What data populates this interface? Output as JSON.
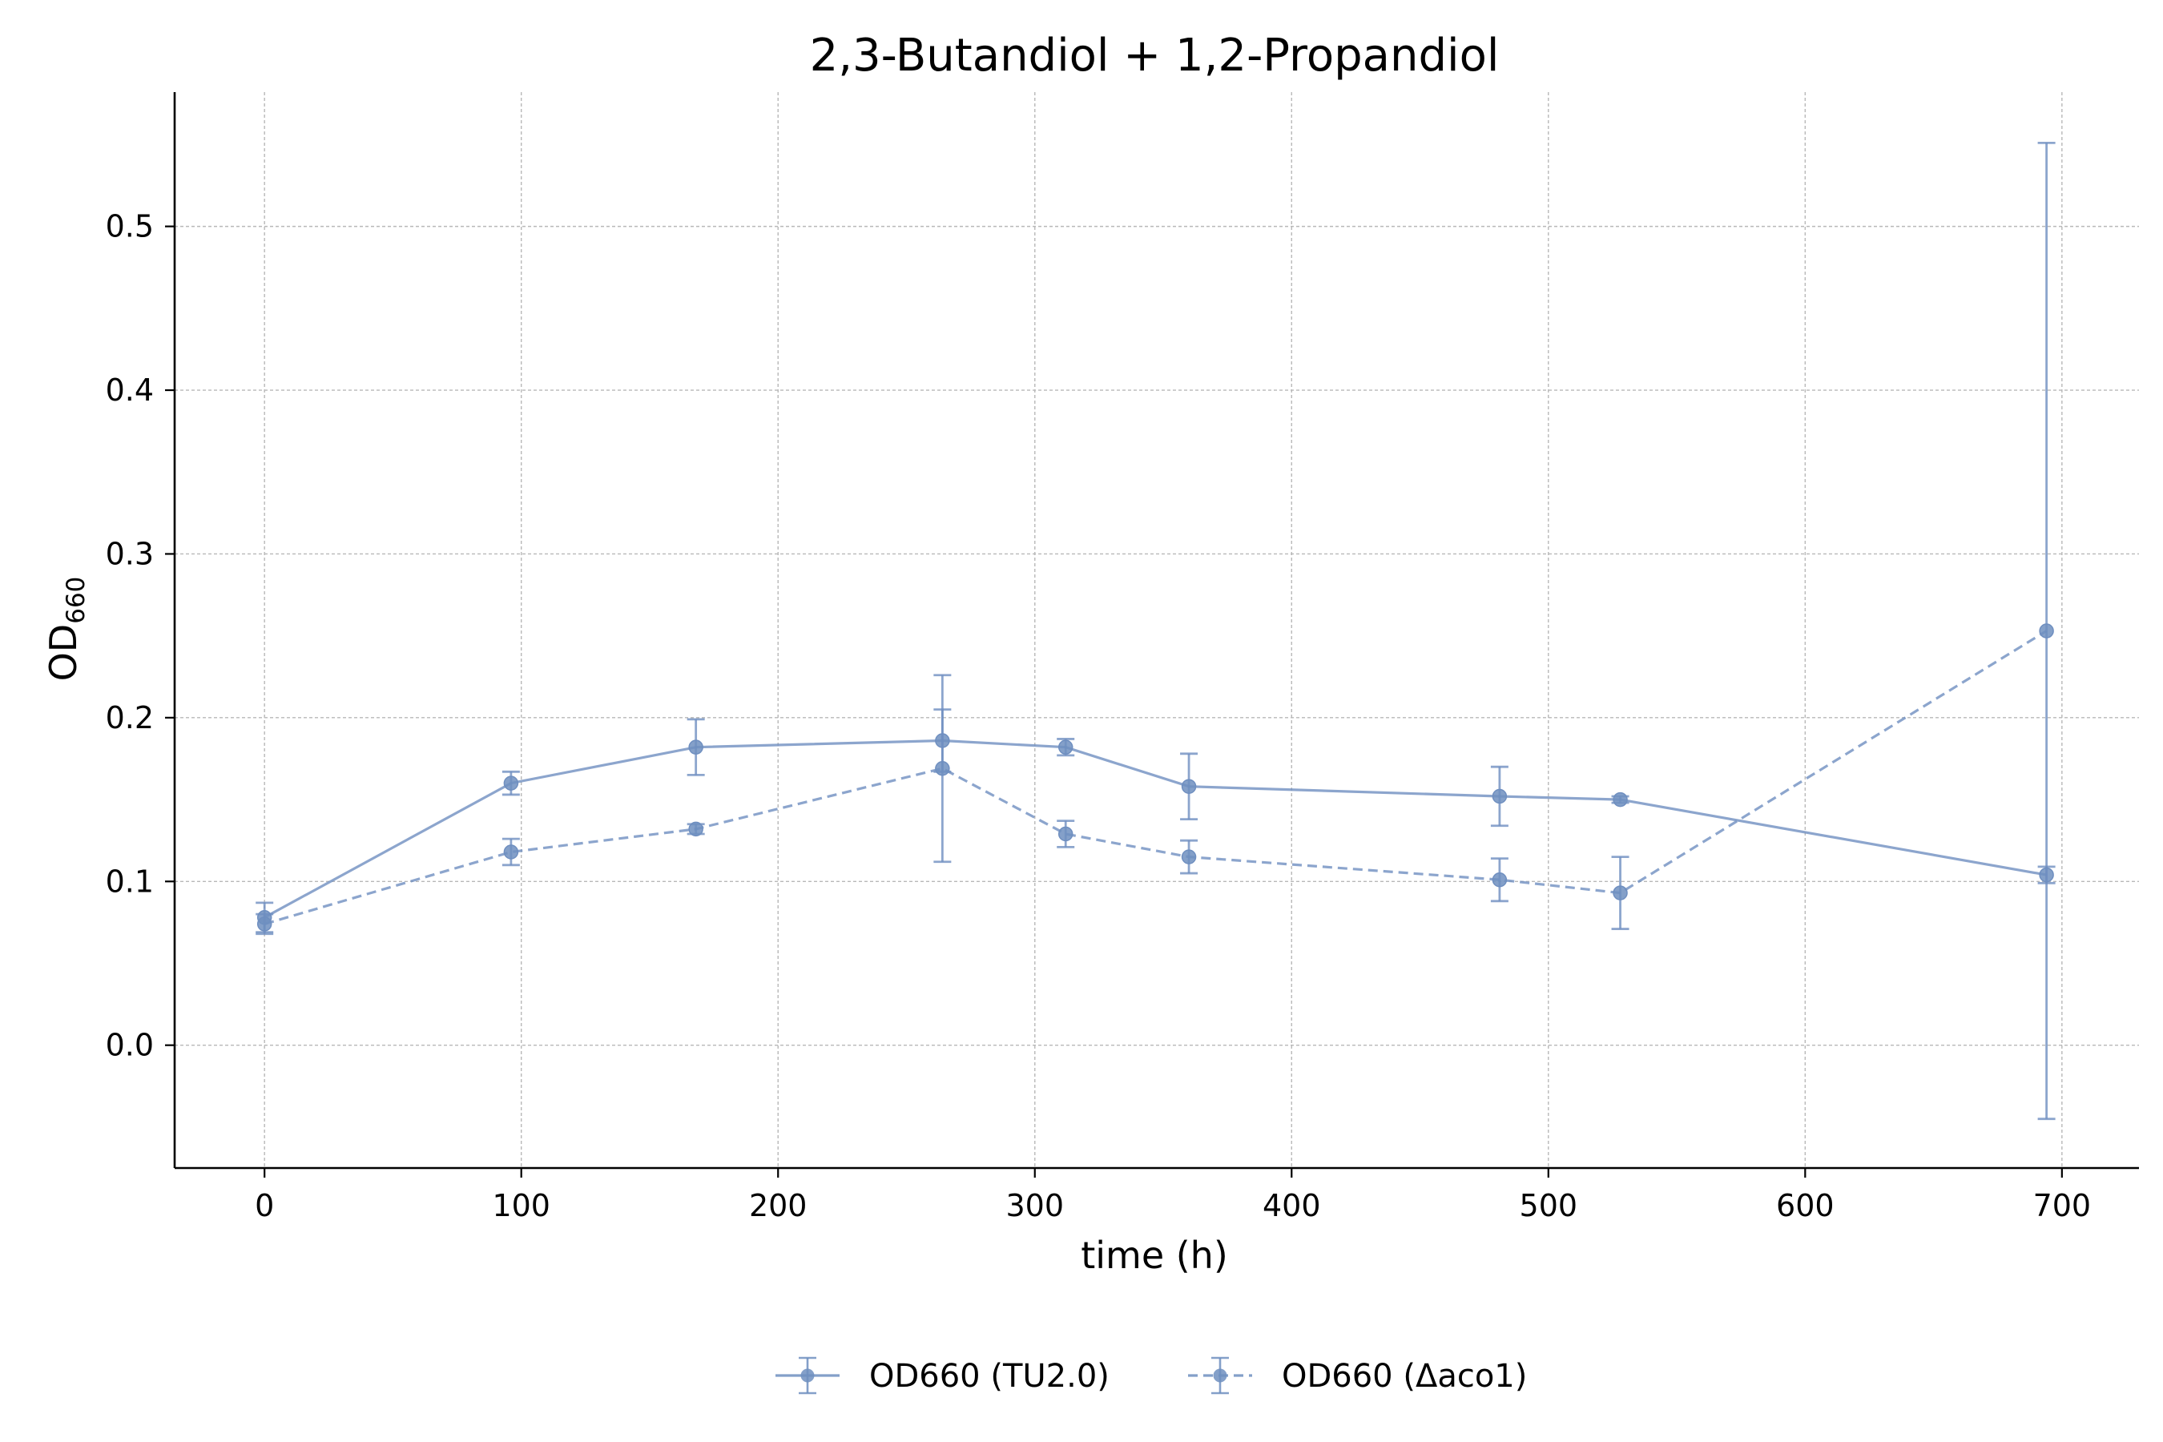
{
  "chart_data": {
    "type": "line",
    "title": "2,3-Butandiol + 1,2-Propandiol",
    "xlabel": "time (h)",
    "ylabel": "OD",
    "ylabel_subscript": "660",
    "xlim": [
      -35,
      730
    ],
    "ylim": [
      -0.075,
      0.582
    ],
    "x_ticks": [
      0,
      100,
      200,
      300,
      400,
      500,
      600,
      700
    ],
    "y_ticks": [
      0.0,
      0.1,
      0.2,
      0.3,
      0.4,
      0.5
    ],
    "x_tick_labels": [
      "0",
      "100",
      "200",
      "300",
      "400",
      "500",
      "600",
      "700"
    ],
    "y_tick_labels": [
      "0.0",
      "0.1",
      "0.2",
      "0.3",
      "0.4",
      "0.5"
    ],
    "grid": true,
    "legend_position": "bottom-center",
    "color": "#6f8fc0",
    "series": [
      {
        "name": "OD660 (TU2.0)",
        "linestyle": "solid",
        "x": [
          0,
          96,
          168,
          264,
          312,
          360,
          481,
          528,
          694
        ],
        "y": [
          0.078,
          0.16,
          0.182,
          0.186,
          0.182,
          0.158,
          0.152,
          0.15,
          0.104
        ],
        "err": [
          0.009,
          0.007,
          0.017,
          0.019,
          0.005,
          0.02,
          0.018,
          0.002,
          0.005
        ]
      },
      {
        "name": "OD660 (Δaco1)",
        "linestyle": "dashed",
        "x": [
          0,
          96,
          168,
          264,
          312,
          360,
          481,
          528,
          694
        ],
        "y": [
          0.074,
          0.118,
          0.132,
          0.169,
          0.129,
          0.115,
          0.101,
          0.093,
          0.253
        ],
        "err": [
          0.006,
          0.008,
          0.003,
          0.057,
          0.008,
          0.01,
          0.013,
          0.022,
          0.298
        ]
      }
    ]
  }
}
